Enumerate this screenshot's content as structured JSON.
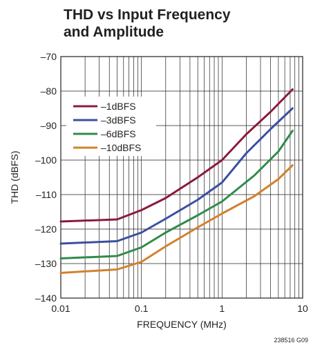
{
  "chart_data": {
    "type": "line",
    "title": [
      "THD vs Input Frequency",
      "and Amplitude"
    ],
    "xlabel": "FREQUENCY (MHz)",
    "ylabel": "THD (dBFS)",
    "x_scale": "log",
    "xlim": [
      0.01,
      10
    ],
    "ylim": [
      -140,
      -70
    ],
    "x_ticks": [
      {
        "value": 0.01,
        "label": "0.01"
      },
      {
        "value": 0.1,
        "label": "0.1"
      },
      {
        "value": 1,
        "label": "1"
      },
      {
        "value": 10,
        "label": "10"
      }
    ],
    "y_ticks": [
      {
        "value": -70,
        "label": "–70"
      },
      {
        "value": -80,
        "label": "–80"
      },
      {
        "value": -90,
        "label": "–90"
      },
      {
        "value": -100,
        "label": "–100"
      },
      {
        "value": -110,
        "label": "–110"
      },
      {
        "value": -120,
        "label": "–120"
      },
      {
        "value": -130,
        "label": "–130"
      },
      {
        "value": -140,
        "label": "–140"
      }
    ],
    "grid": true,
    "legend_position": "top-left",
    "series": [
      {
        "name": "–1dBFS",
        "color": "#8b1a3a",
        "x": [
          0.01,
          0.05,
          0.1,
          0.2,
          0.5,
          1,
          2,
          4,
          7.5
        ],
        "y": [
          -117.8,
          -117.2,
          -114.5,
          -111,
          -105,
          -100,
          -92.5,
          -86,
          -79.5
        ]
      },
      {
        "name": "–3dBFS",
        "color": "#3a4fa0",
        "x": [
          0.01,
          0.05,
          0.1,
          0.2,
          0.5,
          1,
          2,
          4,
          7.5
        ],
        "y": [
          -124.2,
          -123.5,
          -121,
          -117,
          -111.5,
          -106.5,
          -98,
          -91,
          -85
        ]
      },
      {
        "name": "–6dBFS",
        "color": "#2e8b4a",
        "x": [
          0.01,
          0.05,
          0.1,
          0.2,
          0.5,
          1,
          2.5,
          5,
          7.5
        ],
        "y": [
          -128.5,
          -127.8,
          -125.3,
          -121,
          -116,
          -112,
          -104.5,
          -97.5,
          -91.5
        ]
      },
      {
        "name": "–10dBFS",
        "color": "#d2812d",
        "x": [
          0.01,
          0.05,
          0.1,
          0.2,
          0.5,
          1,
          2.5,
          5,
          7.5
        ],
        "y": [
          -132.7,
          -131.7,
          -129.5,
          -125,
          -119.5,
          -115.5,
          -110.5,
          -105.5,
          -101.5
        ]
      }
    ]
  },
  "figure_id": "238516 G09"
}
